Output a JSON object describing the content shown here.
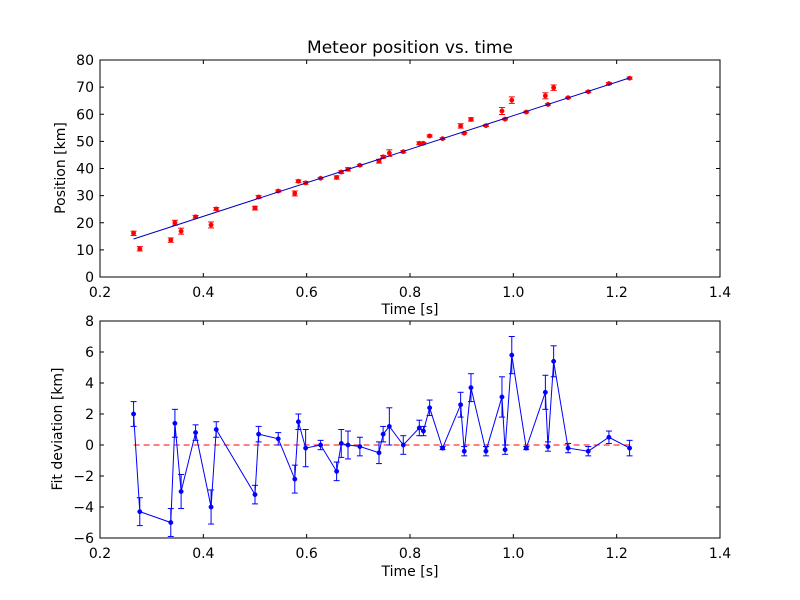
{
  "chart_data": [
    {
      "type": "scatter",
      "title": "Meteor position vs. time",
      "xlabel": "Time [s]",
      "ylabel": "Position [km]",
      "xlim": [
        0.2,
        1.4
      ],
      "ylim": [
        0,
        80
      ],
      "xticks": [
        "0.2",
        "0.4",
        "0.6",
        "0.8",
        "1.0",
        "1.2",
        "1.4"
      ],
      "yticks": [
        "0",
        "10",
        "20",
        "30",
        "40",
        "50",
        "60",
        "70",
        "80"
      ],
      "grid": false,
      "series": [
        {
          "kind": "errorbar-points",
          "color": "#ff0000",
          "x": [
            0.265,
            0.277,
            0.337,
            0.345,
            0.357,
            0.385,
            0.415,
            0.425,
            0.5,
            0.507,
            0.545,
            0.577,
            0.584,
            0.598,
            0.627,
            0.658,
            0.667,
            0.68,
            0.703,
            0.74,
            0.748,
            0.76,
            0.787,
            0.818,
            0.826,
            0.838,
            0.863,
            0.898,
            0.905,
            0.918,
            0.947,
            0.978,
            0.984,
            0.997,
            1.025,
            1.062,
            1.067,
            1.078,
            1.106,
            1.145,
            1.185,
            1.225
          ],
          "y": [
            16.1,
            10.4,
            13.6,
            20.0,
            16.9,
            22.2,
            19.2,
            25.1,
            25.4,
            29.5,
            31.7,
            30.8,
            35.3,
            34.7,
            36.4,
            36.7,
            38.7,
            39.7,
            41.2,
            42.7,
            44.3,
            45.7,
            46.2,
            49.3,
            49.3,
            52.0,
            51.0,
            55.7,
            53.0,
            58.1,
            55.8,
            61.2,
            58.2,
            65.2,
            60.8,
            66.8,
            63.6,
            69.8,
            66.1,
            68.3,
            71.3,
            73.3
          ],
          "yerr": [
            0.8,
            0.8,
            0.8,
            0.9,
            1.1,
            0.5,
            1.1,
            0.5,
            0.7,
            0.5,
            0.4,
            0.9,
            0.5,
            0.5,
            0.3,
            0.6,
            0.5,
            0.6,
            0.3,
            0.7,
            0.5,
            1.2,
            0.4,
            0.5,
            0.3,
            0.4,
            0.3,
            0.8,
            0.3,
            0.6,
            0.3,
            1.3,
            0.3,
            1.2,
            0.3,
            1.1,
            0.3,
            1.0,
            0.2,
            0.3,
            0.4,
            0.4
          ]
        },
        {
          "kind": "line",
          "color": "#0000bf",
          "x": [
            0.265,
            1.225
          ],
          "y": [
            14.0,
            73.4
          ]
        }
      ]
    },
    {
      "type": "line",
      "title": "",
      "xlabel": "Time [s]",
      "ylabel": "Fit deviation [km]",
      "xlim": [
        0.2,
        1.4
      ],
      "ylim": [
        -6,
        8
      ],
      "xticks": [
        "0.2",
        "0.4",
        "0.6",
        "0.8",
        "1.0",
        "1.2",
        "1.4"
      ],
      "yticks": [
        "−6",
        "−4",
        "−2",
        "0",
        "2",
        "4",
        "6",
        "8"
      ],
      "grid": false,
      "reference_line": {
        "y": 0,
        "style": "dashed",
        "color": "#ff0000"
      },
      "series": [
        {
          "kind": "errorbar-line",
          "color": "#0000ff",
          "x": [
            0.265,
            0.277,
            0.337,
            0.345,
            0.357,
            0.385,
            0.415,
            0.425,
            0.5,
            0.507,
            0.545,
            0.577,
            0.584,
            0.598,
            0.627,
            0.658,
            0.667,
            0.68,
            0.703,
            0.74,
            0.748,
            0.76,
            0.787,
            0.818,
            0.826,
            0.838,
            0.863,
            0.898,
            0.905,
            0.918,
            0.947,
            0.978,
            0.984,
            0.997,
            1.025,
            1.062,
            1.067,
            1.078,
            1.106,
            1.145,
            1.185,
            1.225
          ],
          "y": [
            2.0,
            -4.3,
            -5.0,
            1.4,
            -3.0,
            0.8,
            -4.0,
            1.0,
            -3.2,
            0.7,
            0.4,
            -2.2,
            1.5,
            -0.2,
            0.0,
            -1.7,
            0.1,
            0.0,
            -0.1,
            -0.5,
            0.7,
            1.2,
            0.0,
            1.1,
            0.9,
            2.4,
            -0.2,
            2.6,
            -0.4,
            3.7,
            -0.4,
            3.1,
            -0.3,
            5.8,
            -0.2,
            3.4,
            -0.1,
            5.4,
            -0.2,
            -0.4,
            0.5,
            -0.2
          ],
          "yerr": [
            0.8,
            0.9,
            0.9,
            0.9,
            1.1,
            0.5,
            1.1,
            0.5,
            0.6,
            0.5,
            0.4,
            0.9,
            0.5,
            1.2,
            0.3,
            0.6,
            0.9,
            0.9,
            0.6,
            0.7,
            0.5,
            1.2,
            0.6,
            0.5,
            0.3,
            0.5,
            0.1,
            0.8,
            0.3,
            0.9,
            0.3,
            1.3,
            0.3,
            1.2,
            0.1,
            1.1,
            0.3,
            1.0,
            0.3,
            0.3,
            0.4,
            0.5
          ]
        }
      ]
    }
  ]
}
